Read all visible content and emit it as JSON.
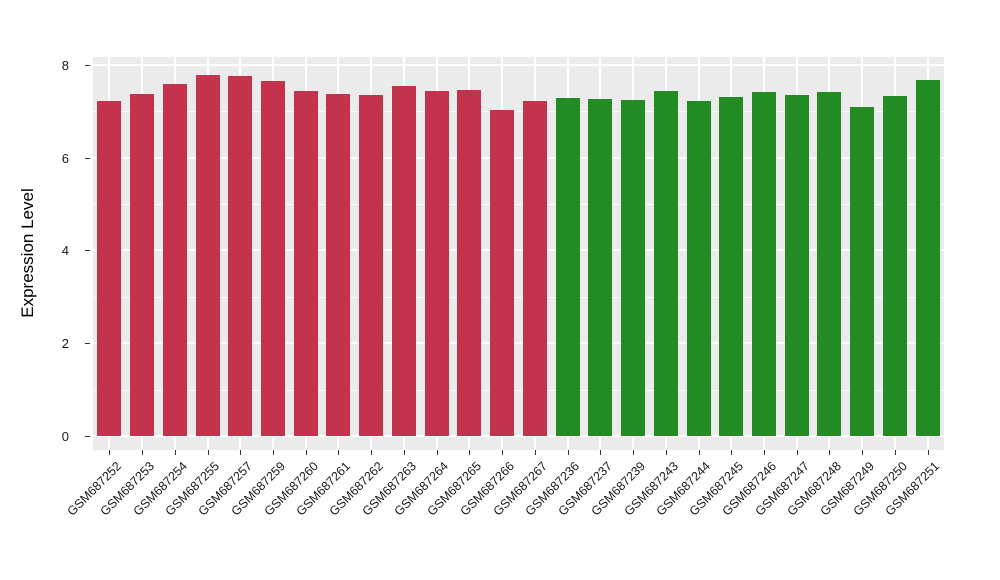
{
  "chart_data": {
    "type": "bar",
    "title": "",
    "xlabel": "",
    "ylabel": "Expression Level",
    "yticks": [
      0,
      2,
      4,
      6,
      8
    ],
    "yticks_minor": [
      1,
      3,
      5,
      7
    ],
    "ylim": [
      0,
      8.17
    ],
    "grid": true,
    "legend_position": "none",
    "panel_bg": "#EBEBEB",
    "grid_color": "#FFFFFF",
    "groups": [
      {
        "name": "group-red",
        "color": "#C4334D"
      },
      {
        "name": "group-green",
        "color": "#228B22"
      }
    ],
    "bars": [
      {
        "label": "GSM687252",
        "value": 7.21,
        "group": 0
      },
      {
        "label": "GSM687253",
        "value": 7.37,
        "group": 0
      },
      {
        "label": "GSM687254",
        "value": 7.58,
        "group": 0
      },
      {
        "label": "GSM687255",
        "value": 7.79,
        "group": 0
      },
      {
        "label": "GSM687257",
        "value": 7.76,
        "group": 0
      },
      {
        "label": "GSM687259",
        "value": 7.65,
        "group": 0
      },
      {
        "label": "GSM687260",
        "value": 7.43,
        "group": 0
      },
      {
        "label": "GSM687261",
        "value": 7.37,
        "group": 0
      },
      {
        "label": "GSM687262",
        "value": 7.34,
        "group": 0
      },
      {
        "label": "GSM687263",
        "value": 7.55,
        "group": 0
      },
      {
        "label": "GSM687264",
        "value": 7.43,
        "group": 0
      },
      {
        "label": "GSM687265",
        "value": 7.46,
        "group": 0
      },
      {
        "label": "GSM687266",
        "value": 7.03,
        "group": 0
      },
      {
        "label": "GSM687267",
        "value": 7.21,
        "group": 0
      },
      {
        "label": "GSM687236",
        "value": 7.28,
        "group": 1
      },
      {
        "label": "GSM687237",
        "value": 7.27,
        "group": 1
      },
      {
        "label": "GSM687239",
        "value": 7.24,
        "group": 1
      },
      {
        "label": "GSM687243",
        "value": 7.43,
        "group": 1
      },
      {
        "label": "GSM687244",
        "value": 7.23,
        "group": 1
      },
      {
        "label": "GSM687245",
        "value": 7.31,
        "group": 1
      },
      {
        "label": "GSM687246",
        "value": 7.41,
        "group": 1
      },
      {
        "label": "GSM687247",
        "value": 7.34,
        "group": 1
      },
      {
        "label": "GSM687248",
        "value": 7.41,
        "group": 1
      },
      {
        "label": "GSM687249",
        "value": 7.08,
        "group": 1
      },
      {
        "label": "GSM687250",
        "value": 7.32,
        "group": 1
      },
      {
        "label": "GSM687251",
        "value": 7.68,
        "group": 1
      }
    ]
  }
}
